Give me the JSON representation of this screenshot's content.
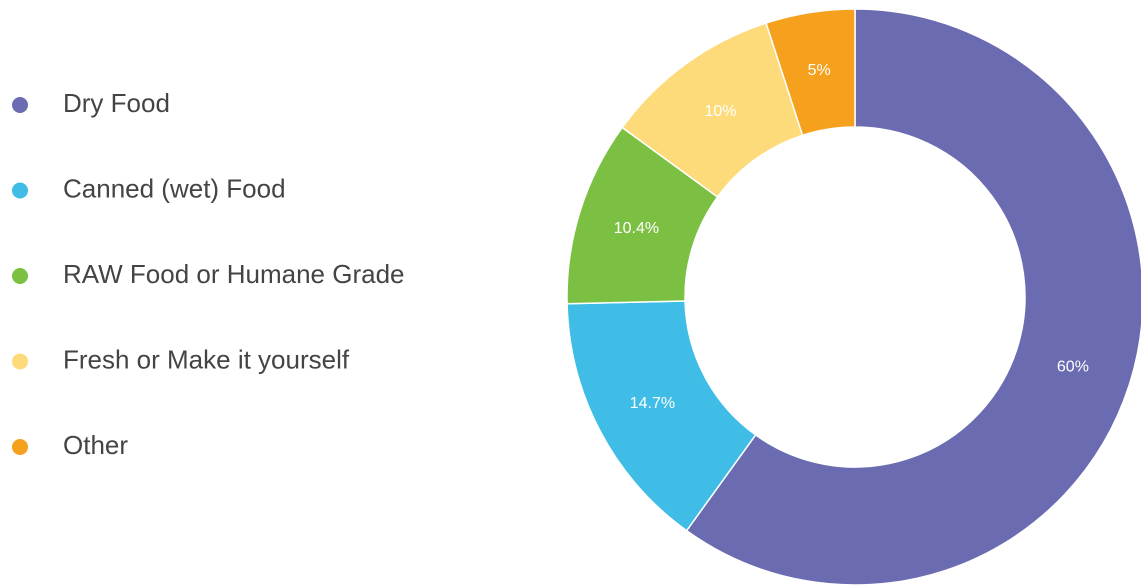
{
  "chart_data": {
    "type": "donut",
    "categories": [
      "Dry Food",
      "Canned (wet) Food",
      "RAW Food or Humane Grade",
      "Fresh or Make it yourself",
      "Other"
    ],
    "values": [
      60,
      14.7,
      10.4,
      10,
      5
    ],
    "value_labels": [
      "60%",
      "14.7%",
      "10.4%",
      "10%",
      "5%"
    ],
    "colors": [
      "#6a6bb0",
      "#3fbde6",
      "#7bc043",
      "#fddb7a",
      "#f5a11e"
    ],
    "legend": "left"
  }
}
